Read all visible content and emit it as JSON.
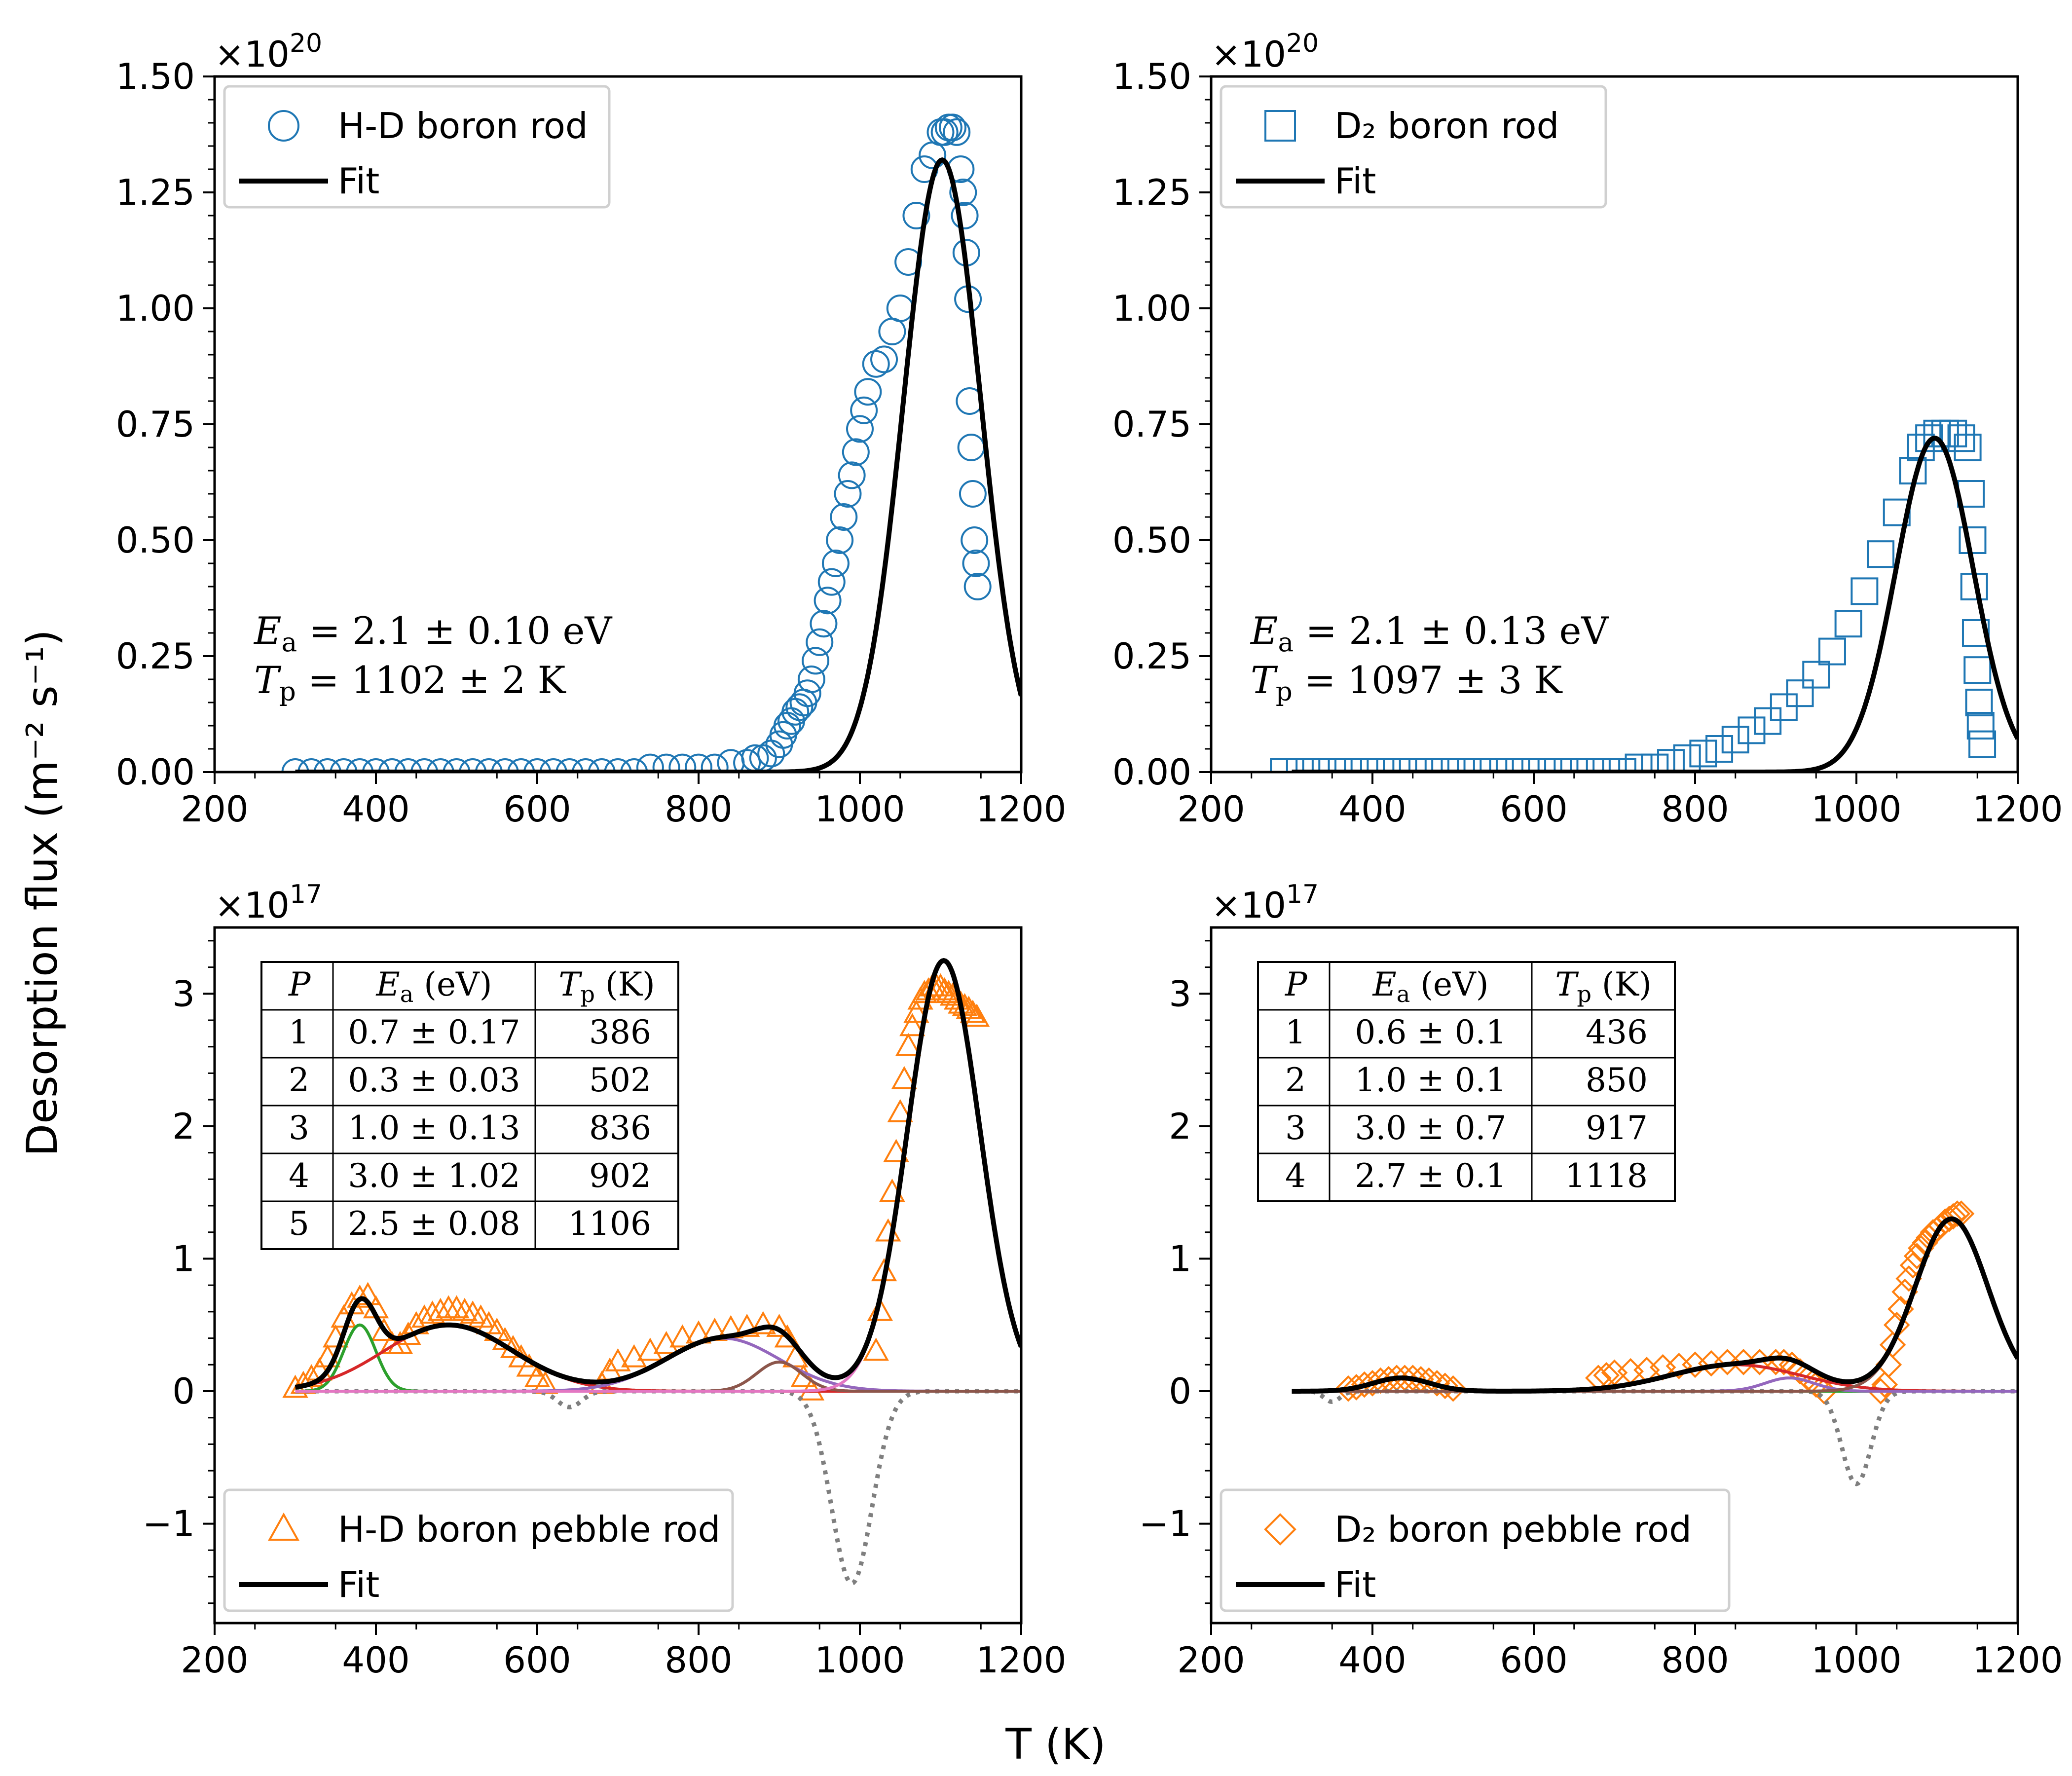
{
  "figure": {
    "ylabel": "Desorption flux (m⁻² s⁻¹)",
    "xlabel": "T (K)"
  },
  "colors": {
    "hd_rod": "#1f77b4",
    "d2_rod": "#1f77b4",
    "pebble": "#ff7f0e",
    "fit": "#000000",
    "peak1": "#2ca02c",
    "peak2": "#d62728",
    "peak3": "#9467bd",
    "peak4": "#8c564b",
    "peak5": "#e377c2",
    "residual": "#7f7f7f"
  },
  "chart_data": [
    {
      "id": "tl",
      "type": "scatter",
      "exponent": "×10",
      "exponent_power": "20",
      "xlim": [
        200,
        1200
      ],
      "ylim": [
        0,
        1.5
      ],
      "xticks": [
        "200",
        "400",
        "600",
        "800",
        "1000",
        "1200"
      ],
      "yticks": [
        "0.00",
        "0.25",
        "0.50",
        "0.75",
        "1.00",
        "1.25",
        "1.50"
      ],
      "ytick_values": [
        0,
        0.25,
        0.5,
        0.75,
        1.0,
        1.25,
        1.5
      ],
      "legend": [
        {
          "marker": "circle",
          "label": "H-D boron rod"
        },
        {
          "marker": "line",
          "label": "Fit"
        }
      ],
      "annotation": [
        "E_a = 2.1 ± 0.10 eV",
        "T_p = 1102 ± 2 K"
      ],
      "fit": {
        "Ea": 2.1,
        "Tp": 1102,
        "amp": 1.32
      },
      "points": [
        [
          300,
          0.0
        ],
        [
          320,
          0.0
        ],
        [
          340,
          0.0
        ],
        [
          360,
          0.0
        ],
        [
          380,
          0.0
        ],
        [
          400,
          0.0
        ],
        [
          420,
          0.0
        ],
        [
          440,
          0.0
        ],
        [
          460,
          0.0
        ],
        [
          480,
          0.0
        ],
        [
          500,
          0.0
        ],
        [
          520,
          0.0
        ],
        [
          540,
          0.0
        ],
        [
          560,
          0.0
        ],
        [
          580,
          0.0
        ],
        [
          600,
          0.0
        ],
        [
          620,
          0.0
        ],
        [
          640,
          0.0
        ],
        [
          660,
          0.0
        ],
        [
          680,
          0.0
        ],
        [
          700,
          0.0
        ],
        [
          720,
          0.0
        ],
        [
          740,
          0.01
        ],
        [
          760,
          0.01
        ],
        [
          780,
          0.01
        ],
        [
          800,
          0.01
        ],
        [
          820,
          0.01
        ],
        [
          840,
          0.02
        ],
        [
          860,
          0.02
        ],
        [
          870,
          0.03
        ],
        [
          880,
          0.03
        ],
        [
          890,
          0.04
        ],
        [
          900,
          0.06
        ],
        [
          905,
          0.08
        ],
        [
          910,
          0.1
        ],
        [
          915,
          0.11
        ],
        [
          920,
          0.13
        ],
        [
          925,
          0.14
        ],
        [
          930,
          0.15
        ],
        [
          935,
          0.17
        ],
        [
          940,
          0.2
        ],
        [
          945,
          0.24
        ],
        [
          950,
          0.28
        ],
        [
          955,
          0.32
        ],
        [
          960,
          0.37
        ],
        [
          965,
          0.41
        ],
        [
          970,
          0.45
        ],
        [
          975,
          0.5
        ],
        [
          980,
          0.55
        ],
        [
          985,
          0.6
        ],
        [
          990,
          0.64
        ],
        [
          995,
          0.69
        ],
        [
          1000,
          0.74
        ],
        [
          1005,
          0.78
        ],
        [
          1010,
          0.82
        ],
        [
          1020,
          0.88
        ],
        [
          1030,
          0.89
        ],
        [
          1040,
          0.95
        ],
        [
          1050,
          1.0
        ],
        [
          1060,
          1.1
        ],
        [
          1070,
          1.2
        ],
        [
          1080,
          1.3
        ],
        [
          1090,
          1.33
        ],
        [
          1100,
          1.38
        ],
        [
          1105,
          1.38
        ],
        [
          1110,
          1.39
        ],
        [
          1115,
          1.39
        ],
        [
          1120,
          1.38
        ],
        [
          1125,
          1.3
        ],
        [
          1128,
          1.25
        ],
        [
          1130,
          1.2
        ],
        [
          1132,
          1.12
        ],
        [
          1134,
          1.02
        ],
        [
          1136,
          0.8
        ],
        [
          1138,
          0.7
        ],
        [
          1140,
          0.6
        ],
        [
          1142,
          0.5
        ],
        [
          1144,
          0.45
        ],
        [
          1146,
          0.4
        ]
      ]
    },
    {
      "id": "tr",
      "type": "scatter",
      "exponent": "×10",
      "exponent_power": "20",
      "xlim": [
        200,
        1200
      ],
      "ylim": [
        0,
        1.5
      ],
      "xticks": [
        "200",
        "400",
        "600",
        "800",
        "1000",
        "1200"
      ],
      "yticks": [
        "0.00",
        "0.25",
        "0.50",
        "0.75",
        "1.00",
        "1.25",
        "1.50"
      ],
      "ytick_values": [
        0,
        0.25,
        0.5,
        0.75,
        1.0,
        1.25,
        1.5
      ],
      "legend": [
        {
          "marker": "square",
          "label": "D₂ boron rod"
        },
        {
          "marker": "line",
          "label": "Fit"
        }
      ],
      "annotation": [
        "E_a = 2.1 ± 0.13 eV",
        "T_p = 1097 ± 3 K"
      ],
      "fit": {
        "Ea": 2.1,
        "Tp": 1097,
        "amp": 0.72
      },
      "points": [
        [
          290,
          0.0
        ],
        [
          310,
          0.0
        ],
        [
          330,
          0.0
        ],
        [
          350,
          0.0
        ],
        [
          370,
          0.0
        ],
        [
          390,
          0.0
        ],
        [
          410,
          0.0
        ],
        [
          430,
          0.0
        ],
        [
          450,
          0.0
        ],
        [
          470,
          0.0
        ],
        [
          490,
          0.0
        ],
        [
          510,
          0.0
        ],
        [
          530,
          0.0
        ],
        [
          550,
          0.0
        ],
        [
          570,
          0.0
        ],
        [
          590,
          0.0
        ],
        [
          610,
          0.0
        ],
        [
          630,
          0.0
        ],
        [
          650,
          0.0
        ],
        [
          670,
          0.0
        ],
        [
          690,
          0.0
        ],
        [
          710,
          0.0
        ],
        [
          730,
          0.01
        ],
        [
          750,
          0.01
        ],
        [
          770,
          0.02
        ],
        [
          790,
          0.03
        ],
        [
          810,
          0.04
        ],
        [
          830,
          0.05
        ],
        [
          850,
          0.07
        ],
        [
          870,
          0.09
        ],
        [
          890,
          0.11
        ],
        [
          910,
          0.14
        ],
        [
          930,
          0.17
        ],
        [
          950,
          0.21
        ],
        [
          970,
          0.26
        ],
        [
          990,
          0.32
        ],
        [
          1010,
          0.39
        ],
        [
          1030,
          0.47
        ],
        [
          1050,
          0.56
        ],
        [
          1070,
          0.65
        ],
        [
          1080,
          0.7
        ],
        [
          1090,
          0.72
        ],
        [
          1100,
          0.73
        ],
        [
          1110,
          0.73
        ],
        [
          1120,
          0.73
        ],
        [
          1130,
          0.72
        ],
        [
          1138,
          0.7
        ],
        [
          1142,
          0.6
        ],
        [
          1144,
          0.5
        ],
        [
          1146,
          0.4
        ],
        [
          1148,
          0.3
        ],
        [
          1150,
          0.22
        ],
        [
          1152,
          0.15
        ],
        [
          1154,
          0.1
        ],
        [
          1156,
          0.06
        ]
      ]
    },
    {
      "id": "bl",
      "type": "scatter",
      "exponent": "×10",
      "exponent_power": "17",
      "xlim": [
        200,
        1200
      ],
      "ylim": [
        -1.75,
        3.5
      ],
      "xticks": [
        "200",
        "400",
        "600",
        "800",
        "1000",
        "1200"
      ],
      "yticks": [
        "−1",
        "0",
        "1",
        "2",
        "3"
      ],
      "ytick_values": [
        -1,
        0,
        1,
        2,
        3
      ],
      "legend": [
        {
          "marker": "triangle",
          "label": "H-D boron pebble rod"
        },
        {
          "marker": "line",
          "label": "Fit"
        }
      ],
      "table": {
        "headers": [
          "P",
          "E_a (eV)",
          "T_p (K)"
        ],
        "rows": [
          [
            "1",
            "0.7 ± 0.17",
            "386"
          ],
          [
            "2",
            "0.3 ± 0.03",
            "502"
          ],
          [
            "3",
            "1.0 ± 0.13",
            "836"
          ],
          [
            "4",
            "3.0 ± 1.02",
            "902"
          ],
          [
            "5",
            "2.5 ± 0.08",
            "1106"
          ]
        ]
      },
      "components": [
        {
          "center": 380,
          "width": 20,
          "amp": 0.5
        },
        {
          "center": 490,
          "width": 80,
          "amp": 0.5
        },
        {
          "center": 830,
          "width": 70,
          "amp": 0.4
        },
        {
          "center": 900,
          "width": 28,
          "amp": 0.22
        },
        {
          "center": 1104,
          "width": 45,
          "amp": 3.25
        }
      ],
      "residual_dips": [
        {
          "center": 640,
          "width": 15,
          "amp": -0.12
        },
        {
          "center": 990,
          "width": 25,
          "amp": -1.45
        }
      ],
      "points": [
        [
          300,
          0.02
        ],
        [
          310,
          0.05
        ],
        [
          320,
          0.1
        ],
        [
          330,
          0.15
        ],
        [
          340,
          0.25
        ],
        [
          350,
          0.4
        ],
        [
          360,
          0.55
        ],
        [
          370,
          0.65
        ],
        [
          380,
          0.7
        ],
        [
          390,
          0.72
        ],
        [
          400,
          0.62
        ],
        [
          410,
          0.45
        ],
        [
          420,
          0.35
        ],
        [
          430,
          0.35
        ],
        [
          440,
          0.42
        ],
        [
          450,
          0.5
        ],
        [
          460,
          0.55
        ],
        [
          470,
          0.58
        ],
        [
          480,
          0.6
        ],
        [
          490,
          0.62
        ],
        [
          500,
          0.62
        ],
        [
          510,
          0.6
        ],
        [
          520,
          0.58
        ],
        [
          530,
          0.55
        ],
        [
          540,
          0.5
        ],
        [
          550,
          0.45
        ],
        [
          560,
          0.38
        ],
        [
          570,
          0.32
        ],
        [
          580,
          0.25
        ],
        [
          590,
          0.18
        ],
        [
          600,
          0.1
        ],
        [
          610,
          0.05
        ],
        [
          680,
          0.05
        ],
        [
          690,
          0.15
        ],
        [
          700,
          0.22
        ],
        [
          720,
          0.25
        ],
        [
          740,
          0.3
        ],
        [
          760,
          0.35
        ],
        [
          780,
          0.4
        ],
        [
          800,
          0.43
        ],
        [
          820,
          0.45
        ],
        [
          840,
          0.47
        ],
        [
          860,
          0.48
        ],
        [
          880,
          0.5
        ],
        [
          900,
          0.48
        ],
        [
          910,
          0.4
        ],
        [
          920,
          0.25
        ],
        [
          930,
          0.1
        ],
        [
          940,
          0.0
        ],
        [
          1020,
          0.3
        ],
        [
          1025,
          0.6
        ],
        [
          1030,
          0.9
        ],
        [
          1035,
          1.2
        ],
        [
          1040,
          1.5
        ],
        [
          1045,
          1.8
        ],
        [
          1050,
          2.1
        ],
        [
          1055,
          2.35
        ],
        [
          1060,
          2.6
        ],
        [
          1065,
          2.75
        ],
        [
          1070,
          2.85
        ],
        [
          1075,
          2.95
        ],
        [
          1080,
          3.0
        ],
        [
          1085,
          3.02
        ],
        [
          1090,
          3.05
        ],
        [
          1095,
          3.05
        ],
        [
          1100,
          3.05
        ],
        [
          1105,
          3.02
        ],
        [
          1110,
          3.0
        ],
        [
          1115,
          2.98
        ],
        [
          1120,
          2.95
        ],
        [
          1125,
          2.92
        ],
        [
          1130,
          2.9
        ],
        [
          1135,
          2.88
        ],
        [
          1140,
          2.85
        ],
        [
          1145,
          2.82
        ]
      ]
    },
    {
      "id": "br",
      "type": "scatter",
      "exponent": "×10",
      "exponent_power": "17",
      "xlim": [
        200,
        1200
      ],
      "ylim": [
        -1.75,
        3.5
      ],
      "xticks": [
        "200",
        "400",
        "600",
        "800",
        "1000",
        "1200"
      ],
      "yticks": [
        "−1",
        "0",
        "1",
        "2",
        "3"
      ],
      "ytick_values": [
        -1,
        0,
        1,
        2,
        3
      ],
      "legend": [
        {
          "marker": "diamond",
          "label": "D₂ boron pebble rod"
        },
        {
          "marker": "line",
          "label": "Fit"
        }
      ],
      "table": {
        "headers": [
          "P",
          "E_a (eV)",
          "T_p (K)"
        ],
        "rows": [
          [
            "1",
            "0.6 ± 0.1",
            "436"
          ],
          [
            "2",
            "1.0 ± 0.1",
            "850"
          ],
          [
            "3",
            "3.0 ± 0.7",
            "917"
          ],
          [
            "4",
            "2.7 ± 0.1",
            "1118"
          ]
        ]
      },
      "components": [
        {
          "center": 436,
          "width": 35,
          "amp": 0.1
        },
        {
          "center": 850,
          "width": 80,
          "amp": 0.2
        },
        {
          "center": 917,
          "width": 30,
          "amp": 0.1
        },
        {
          "center": 1118,
          "width": 45,
          "amp": 1.3
        }
      ],
      "residual_dips": [
        {
          "center": 350,
          "width": 10,
          "amp": -0.08
        },
        {
          "center": 1000,
          "width": 18,
          "amp": -0.7
        }
      ],
      "points": [
        [
          370,
          0.02
        ],
        [
          380,
          0.03
        ],
        [
          390,
          0.05
        ],
        [
          400,
          0.06
        ],
        [
          410,
          0.08
        ],
        [
          420,
          0.09
        ],
        [
          430,
          0.1
        ],
        [
          440,
          0.1
        ],
        [
          450,
          0.1
        ],
        [
          460,
          0.09
        ],
        [
          470,
          0.08
        ],
        [
          480,
          0.06
        ],
        [
          490,
          0.04
        ],
        [
          500,
          0.02
        ],
        [
          680,
          0.1
        ],
        [
          690,
          0.12
        ],
        [
          700,
          0.14
        ],
        [
          720,
          0.15
        ],
        [
          740,
          0.16
        ],
        [
          760,
          0.18
        ],
        [
          780,
          0.19
        ],
        [
          800,
          0.2
        ],
        [
          820,
          0.21
        ],
        [
          840,
          0.22
        ],
        [
          860,
          0.22
        ],
        [
          880,
          0.22
        ],
        [
          900,
          0.22
        ],
        [
          910,
          0.22
        ],
        [
          920,
          0.2
        ],
        [
          930,
          0.15
        ],
        [
          940,
          0.1
        ],
        [
          950,
          0.05
        ],
        [
          960,
          0.0
        ],
        [
          1030,
          0.0
        ],
        [
          1035,
          0.05
        ],
        [
          1040,
          0.2
        ],
        [
          1045,
          0.35
        ],
        [
          1050,
          0.5
        ],
        [
          1055,
          0.62
        ],
        [
          1060,
          0.75
        ],
        [
          1065,
          0.85
        ],
        [
          1070,
          0.95
        ],
        [
          1075,
          1.02
        ],
        [
          1080,
          1.08
        ],
        [
          1085,
          1.12
        ],
        [
          1090,
          1.16
        ],
        [
          1095,
          1.2
        ],
        [
          1100,
          1.22
        ],
        [
          1105,
          1.25
        ],
        [
          1110,
          1.28
        ],
        [
          1115,
          1.3
        ],
        [
          1120,
          1.32
        ],
        [
          1125,
          1.34
        ],
        [
          1130,
          1.34
        ]
      ]
    }
  ]
}
